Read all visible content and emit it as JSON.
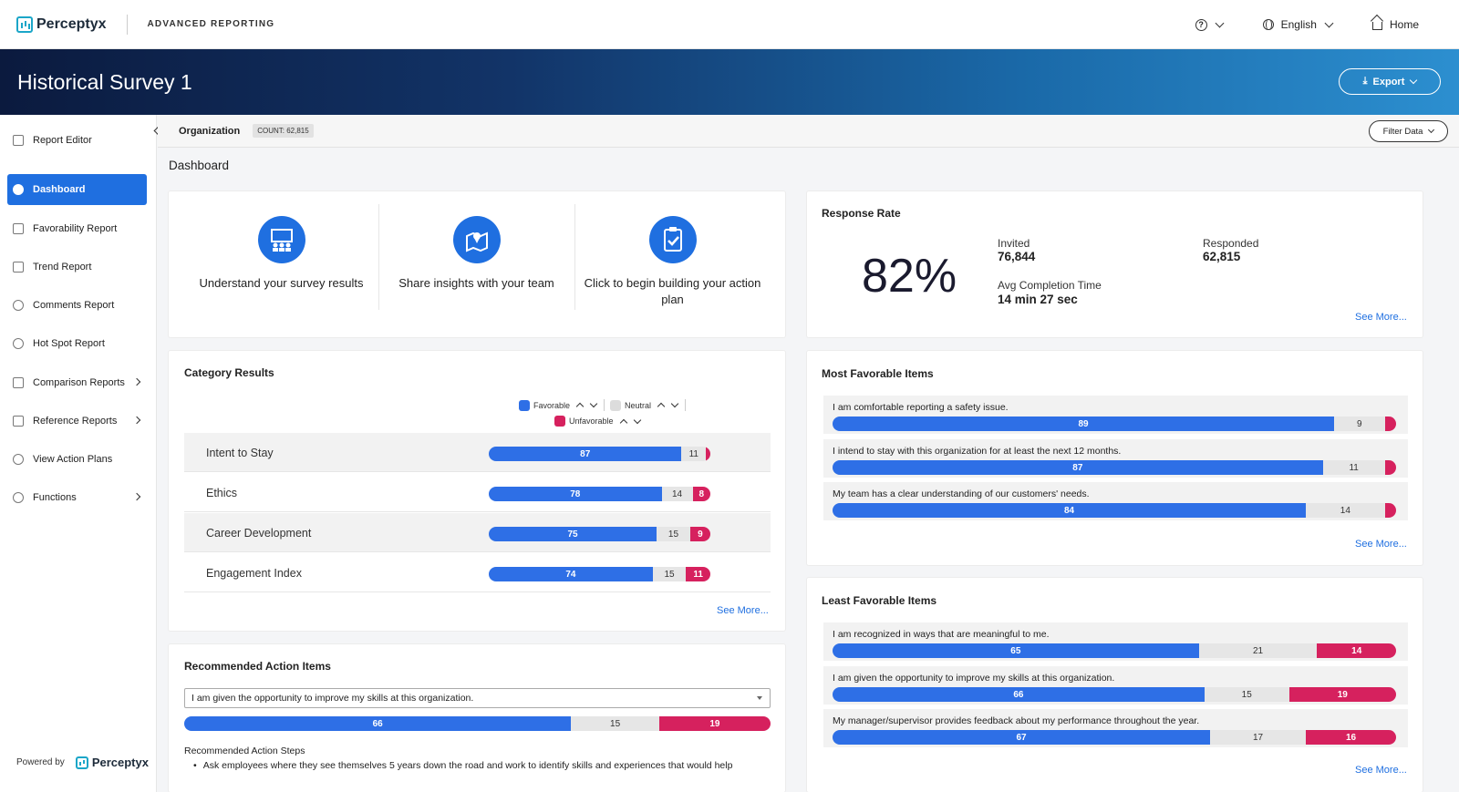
{
  "header": {
    "brand": "Perceptyx",
    "app_name": "ADVANCED REPORTING",
    "help_icon": "?",
    "language": "English",
    "home": "Home"
  },
  "banner": {
    "title": "Historical Survey 1",
    "export": "Export"
  },
  "sidebar": {
    "items": [
      {
        "label": "Report Editor",
        "icon": "edit-icon"
      },
      {
        "label": "Dashboard",
        "icon": "dashboard-icon",
        "active": true
      },
      {
        "label": "Favorability Report",
        "icon": "thumbs-up-icon"
      },
      {
        "label": "Trend Report",
        "icon": "trend-icon"
      },
      {
        "label": "Comments Report",
        "icon": "comments-icon"
      },
      {
        "label": "Hot Spot Report",
        "icon": "target-icon"
      },
      {
        "label": "Comparison Reports",
        "icon": "scale-icon"
      },
      {
        "label": "Reference Reports",
        "icon": "list-icon"
      },
      {
        "label": "View Action Plans",
        "icon": "check-circle-icon"
      },
      {
        "label": "Functions",
        "icon": "gear-icon"
      }
    ],
    "powered_by": "Powered by",
    "powered_brand": "Perceptyx"
  },
  "orgbar": {
    "label": "Organization",
    "count": "COUNT: 62,815",
    "filter": "Filter Data"
  },
  "dashboard_title": "Dashboard",
  "quick_actions": [
    {
      "label": "Understand your survey results",
      "icon": "presentation-icon"
    },
    {
      "label": "Share insights with your team",
      "icon": "map-icon"
    },
    {
      "label": "Click to begin building your action plan",
      "icon": "clipboard-check-icon"
    }
  ],
  "response_rate": {
    "title": "Response Rate",
    "percent": "82%",
    "invited_label": "Invited",
    "invited_value": "76,844",
    "responded_label": "Responded",
    "responded_value": "62,815",
    "avg_label": "Avg Completion Time",
    "avg_value": "14 min 27 sec",
    "see_more": "See More..."
  },
  "category_results": {
    "title": "Category Results",
    "legend": {
      "favorable": "Favorable",
      "neutral": "Neutral",
      "unfavorable": "Unfavorable"
    },
    "rows": [
      {
        "label": "Intent to Stay",
        "fav": 87,
        "neu": 11,
        "unf": 2,
        "unf_label": ""
      },
      {
        "label": "Ethics",
        "fav": 78,
        "neu": 14,
        "unf": 8,
        "unf_label": "8"
      },
      {
        "label": "Career Development",
        "fav": 75,
        "neu": 15,
        "unf": 9,
        "unf_label": "9"
      },
      {
        "label": "Engagement Index",
        "fav": 74,
        "neu": 15,
        "unf": 11,
        "unf_label": "11"
      }
    ],
    "see_more": "See More..."
  },
  "most_favorable": {
    "title": "Most Favorable Items",
    "items": [
      {
        "text": "I am comfortable reporting a safety issue.",
        "fav": 89,
        "neu": 9,
        "unf": 2,
        "unf_label": ""
      },
      {
        "text": "I intend to stay with this organization for at least the next 12 months.",
        "fav": 87,
        "neu": 11,
        "unf": 2,
        "unf_label": ""
      },
      {
        "text": "My team has a clear understanding of our customers' needs.",
        "fav": 84,
        "neu": 14,
        "unf": 2,
        "unf_label": ""
      }
    ],
    "see_more": "See More..."
  },
  "least_favorable": {
    "title": "Least Favorable Items",
    "items": [
      {
        "text": "I am recognized in ways that are meaningful to me.",
        "fav": 65,
        "neu": 21,
        "unf": 14,
        "unf_label": "14"
      },
      {
        "text": "I am given the opportunity to improve my skills at this organization.",
        "fav": 66,
        "neu": 15,
        "unf": 19,
        "unf_label": "19"
      },
      {
        "text": "My manager/supervisor provides feedback about my performance throughout the year.",
        "fav": 67,
        "neu": 17,
        "unf": 16,
        "unf_label": "16"
      }
    ],
    "see_more": "See More..."
  },
  "recommended": {
    "title": "Recommended Action Items",
    "selected": "I am given the opportunity to improve my skills at this organization.",
    "fav": 66,
    "neu": 15,
    "unf": 19,
    "unf_label": "19",
    "steps_label": "Recommended Action Steps",
    "step_1": "Ask employees where they see themselves 5 years down the road and work to identify skills and experiences that would help"
  },
  "colors": {
    "favorable": "#2e6fe6",
    "neutral": "#e6e6e6",
    "unfavorable": "#d6215e",
    "accent": "#1f6fe0"
  }
}
